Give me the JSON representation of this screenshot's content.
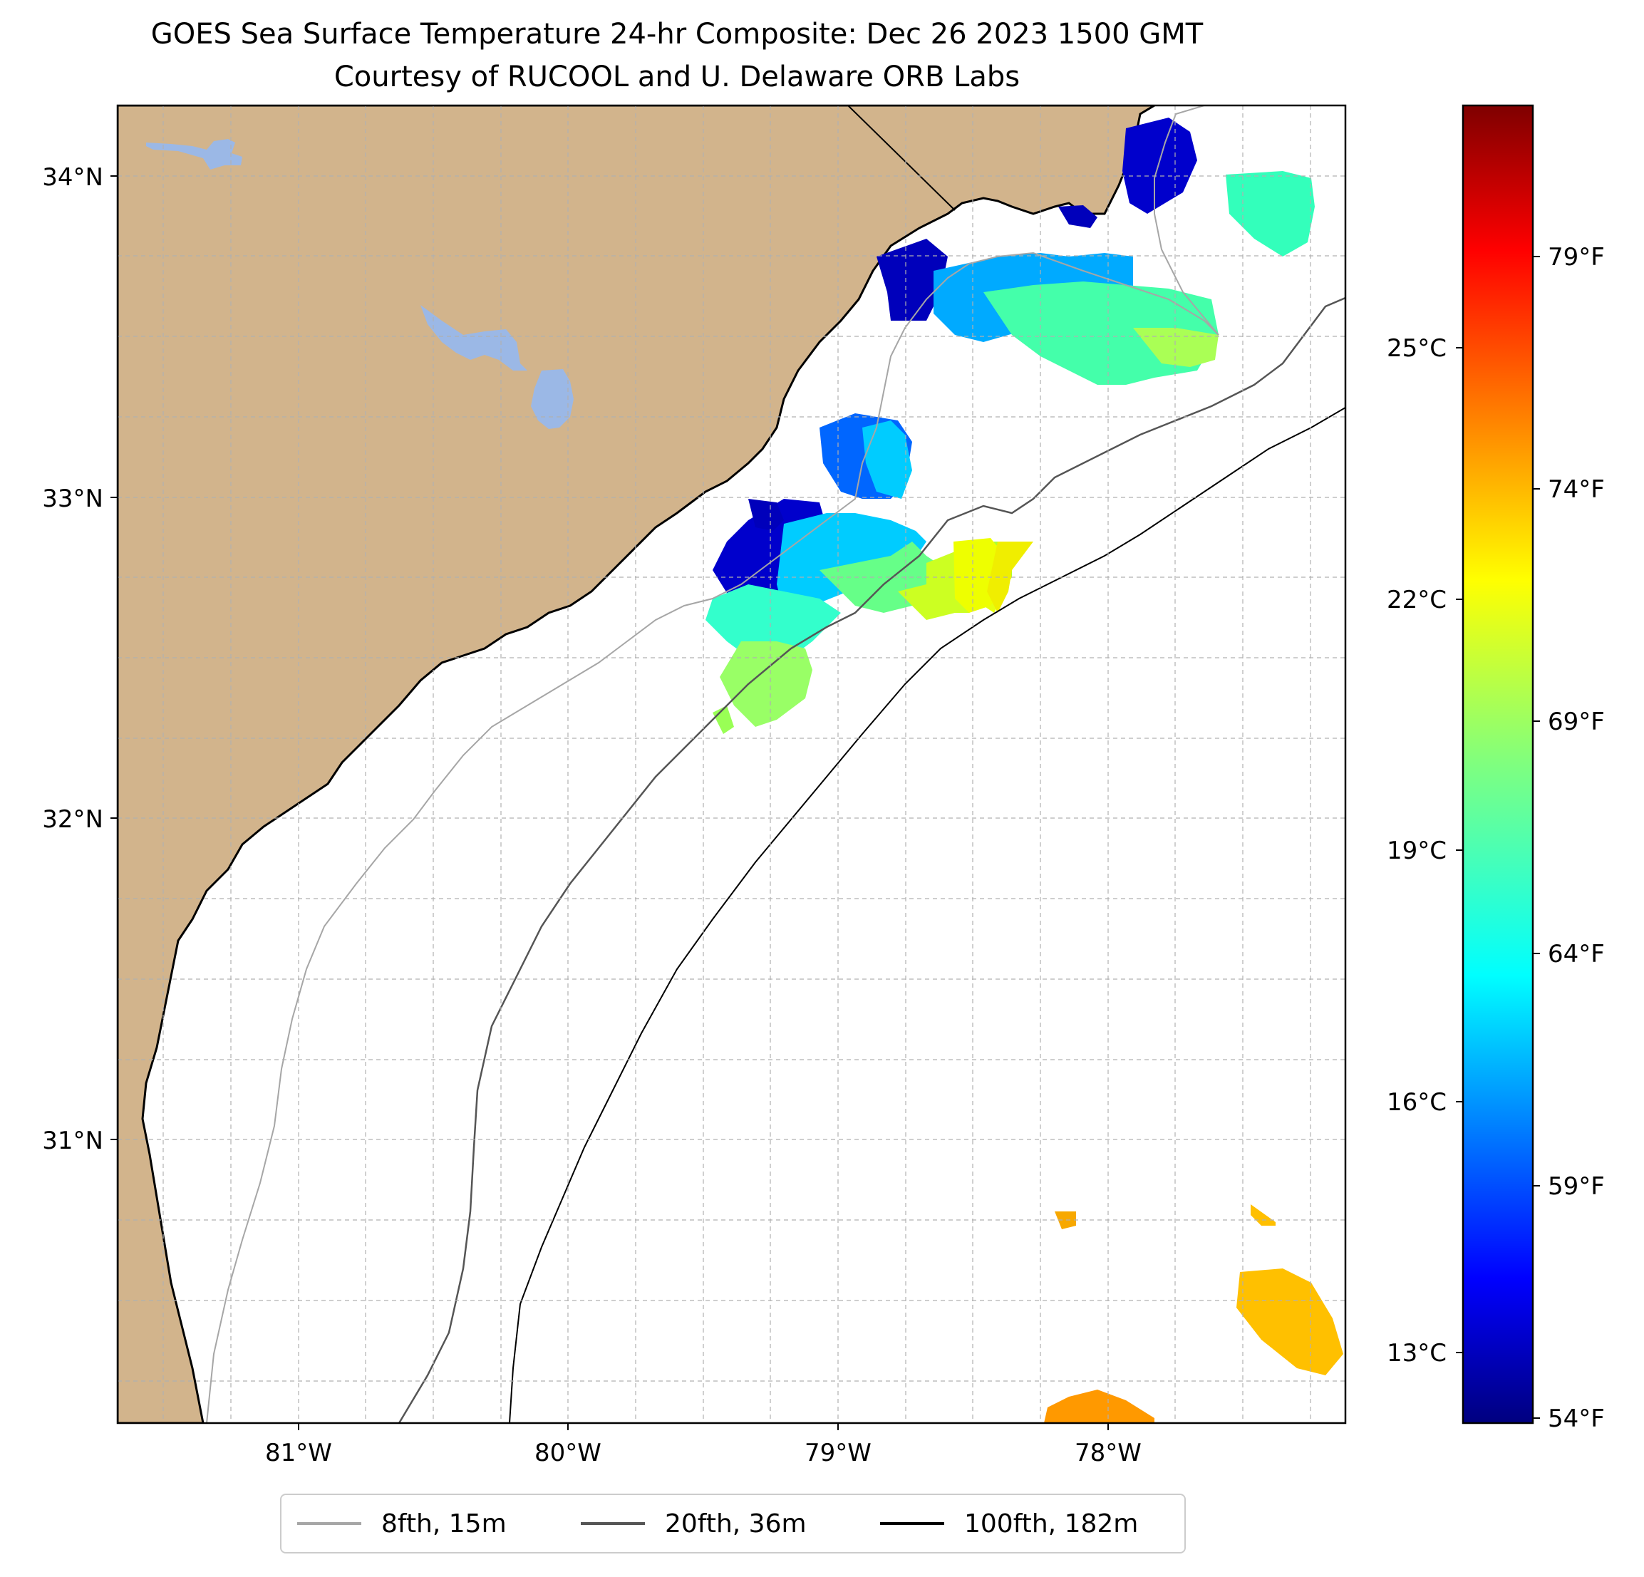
{
  "title": {
    "line1": "GOES Sea Surface Temperature 24-hr Composite: Dec 26 2023 1500 GMT",
    "line2": "Courtesy of RUCOOL and U. Delaware ORB Labs"
  },
  "map": {
    "extent_lon": [
      -81.67,
      -77.13
    ],
    "extent_lat": [
      30.07,
      34.22
    ],
    "lat_ticks": [
      {
        "value": 34,
        "label": "34°N"
      },
      {
        "value": 33,
        "label": "33°N"
      },
      {
        "value": 32,
        "label": "32°N"
      },
      {
        "value": 31,
        "label": "31°N"
      }
    ],
    "lon_ticks": [
      {
        "value": -81,
        "label": "81°W"
      },
      {
        "value": -80,
        "label": "80°W"
      },
      {
        "value": -79,
        "label": "79°W"
      },
      {
        "value": -78,
        "label": "78°W"
      }
    ],
    "colors": {
      "land": "#d2b48c",
      "water_bodies": "#9bb8e6",
      "coastline": "#000000",
      "gridline": "#b0b0b0"
    }
  },
  "colorbar": {
    "celsius_ticks": [
      "25°C",
      "22°C",
      "19°C",
      "16°C",
      "13°C"
    ],
    "fahrenheit_ticks": [
      "79°F",
      "74°F",
      "69°F",
      "64°F",
      "59°F",
      "54°F"
    ],
    "colormap": "jet"
  },
  "legend": {
    "items": [
      {
        "label": "8fth, 15m",
        "color": "#a6a6a6"
      },
      {
        "label": "20fth, 36m",
        "color": "#555555"
      },
      {
        "label": "100fth, 182m",
        "color": "#000000"
      }
    ]
  }
}
